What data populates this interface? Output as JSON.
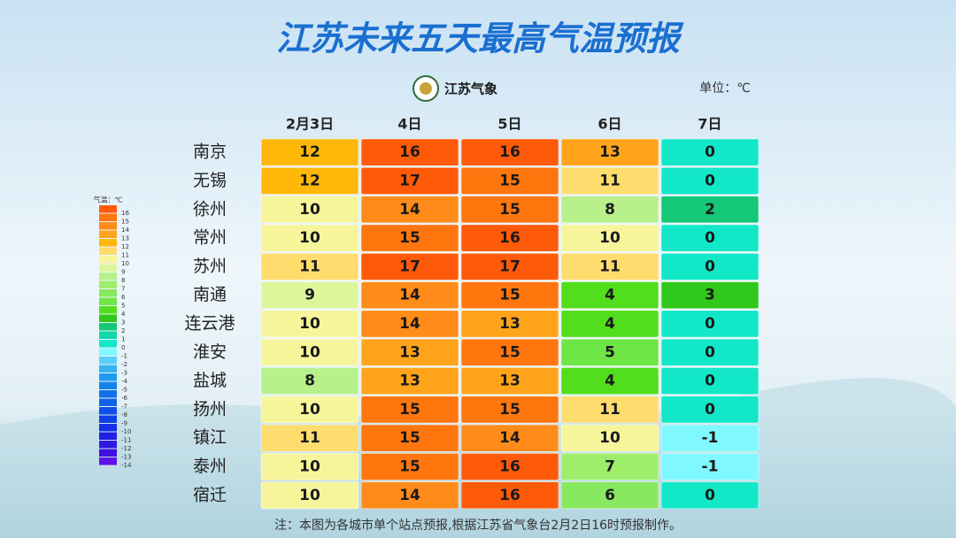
{
  "title": "江苏未来五天最高气温预报",
  "logo_text": "江苏气象",
  "unit": "单位：℃",
  "note": "注：本图为各城市单个站点预报,根据江苏省气象台2月2日16时预报制作。",
  "chart_data": {
    "type": "heatmap",
    "columns": [
      "2月3日",
      "4日",
      "5日",
      "6日",
      "7日"
    ],
    "rows": [
      "南京",
      "无锡",
      "徐州",
      "常州",
      "苏州",
      "南通",
      "连云港",
      "淮安",
      "盐城",
      "扬州",
      "镇江",
      "泰州",
      "宿迁"
    ],
    "values": [
      [
        12,
        16,
        16,
        13,
        0
      ],
      [
        12,
        17,
        15,
        11,
        0
      ],
      [
        10,
        14,
        15,
        8,
        2
      ],
      [
        10,
        15,
        16,
        10,
        0
      ],
      [
        11,
        17,
        17,
        11,
        0
      ],
      [
        9,
        14,
        15,
        4,
        3
      ],
      [
        10,
        14,
        13,
        4,
        0
      ],
      [
        10,
        13,
        15,
        5,
        0
      ],
      [
        8,
        13,
        13,
        4,
        0
      ],
      [
        10,
        15,
        15,
        11,
        0
      ],
      [
        11,
        15,
        14,
        10,
        -1
      ],
      [
        10,
        15,
        16,
        7,
        -1
      ],
      [
        10,
        14,
        16,
        6,
        0
      ]
    ],
    "legend": {
      "title": "气温：℃",
      "levels": [
        {
          "value": 16,
          "color": "#ff5a0a"
        },
        {
          "value": 15,
          "color": "#ff760e"
        },
        {
          "value": 14,
          "color": "#ff8c1a"
        },
        {
          "value": 13,
          "color": "#ffa41a"
        },
        {
          "value": 12,
          "color": "#ffb80a"
        },
        {
          "value": 11,
          "color": "#ffdc6e"
        },
        {
          "value": 10,
          "color": "#f6f59c"
        },
        {
          "value": 9,
          "color": "#ddf69c"
        },
        {
          "value": 8,
          "color": "#b8f08c"
        },
        {
          "value": 7,
          "color": "#9eee6c"
        },
        {
          "value": 6,
          "color": "#88e860"
        },
        {
          "value": 5,
          "color": "#6ee646"
        },
        {
          "value": 4,
          "color": "#52de1c"
        },
        {
          "value": 3,
          "color": "#30c81a"
        },
        {
          "value": 2,
          "color": "#14c878"
        },
        {
          "value": 1,
          "color": "#10d6aa"
        },
        {
          "value": 0,
          "color": "#12e8c8"
        },
        {
          "value": -1,
          "color": "#80f8ff"
        },
        {
          "value": -2,
          "color": "#5ad0f8"
        },
        {
          "value": -3,
          "color": "#38b4f0"
        },
        {
          "value": -4,
          "color": "#2098f0"
        },
        {
          "value": -5,
          "color": "#1484ec"
        },
        {
          "value": -6,
          "color": "#1070e8"
        },
        {
          "value": -7,
          "color": "#1060e8"
        },
        {
          "value": -8,
          "color": "#1050e8"
        },
        {
          "value": -9,
          "color": "#1040e8"
        },
        {
          "value": -10,
          "color": "#1830e8"
        },
        {
          "value": -11,
          "color": "#2020e0"
        },
        {
          "value": -12,
          "color": "#3018e0"
        },
        {
          "value": -13,
          "color": "#4010e0"
        },
        {
          "value": -14,
          "color": "#6010e8"
        }
      ]
    }
  }
}
